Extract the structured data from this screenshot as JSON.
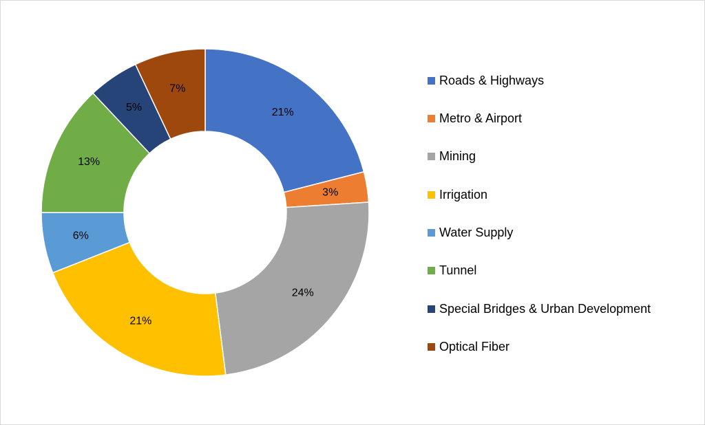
{
  "chart_data": {
    "type": "pie",
    "variant": "donut",
    "title": "",
    "legend_position": "right",
    "slices": [
      {
        "label": "Roads & Highways",
        "value": 21,
        "display": "21%",
        "color": "#4472C4"
      },
      {
        "label": "Metro & Airport",
        "value": 3,
        "display": "3%",
        "color": "#ED7D31"
      },
      {
        "label": "Mining",
        "value": 24,
        "display": "24%",
        "color": "#A5A5A5"
      },
      {
        "label": "Irrigation",
        "value": 21,
        "display": "21%",
        "color": "#FFC000"
      },
      {
        "label": "Water Supply",
        "value": 6,
        "display": "6%",
        "color": "#5B9BD5"
      },
      {
        "label": "Tunnel",
        "value": 13,
        "display": "13%",
        "color": "#70AD47"
      },
      {
        "label": "Special Bridges & Urban Development",
        "value": 5,
        "display": "5%",
        "color": "#264478"
      },
      {
        "label": "Optical Fiber",
        "value": 7,
        "display": "7%",
        "color": "#9E480E"
      }
    ]
  }
}
